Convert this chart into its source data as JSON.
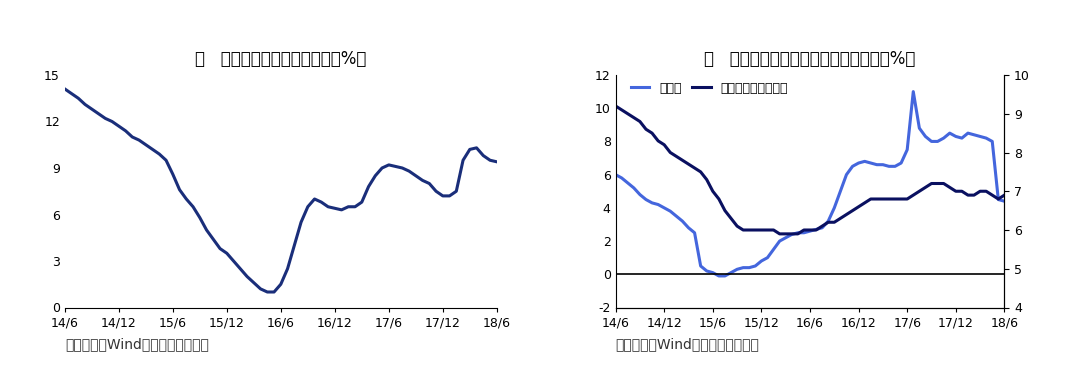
{
  "chart1_title": "图   房地产投资累计同比增速（%）",
  "chart2_title": "图   工业增加值与发电量累计同比增速（%）",
  "source_text": "资料来源：Wind，海通证券研究所",
  "legend_power": "发电量",
  "legend_industry": "工业增加值（右轴）",
  "xtick_labels": [
    "14/6",
    "14/12",
    "15/6",
    "15/12",
    "16/6",
    "16/12",
    "17/6",
    "17/12",
    "18/6"
  ],
  "chart1": {
    "ylim": [
      0,
      15
    ],
    "yticks": [
      0,
      3,
      6,
      9,
      12,
      15
    ],
    "y": [
      14.1,
      13.8,
      13.5,
      13.1,
      12.8,
      12.5,
      12.2,
      12.0,
      11.7,
      11.4,
      11.0,
      10.8,
      10.5,
      10.2,
      9.9,
      9.5,
      8.6,
      7.6,
      7.0,
      6.5,
      5.8,
      5.0,
      4.4,
      3.8,
      3.5,
      3.0,
      2.5,
      2.0,
      1.6,
      1.2,
      1.0,
      1.0,
      1.5,
      2.5,
      4.0,
      5.5,
      6.5,
      7.0,
      6.8,
      6.5,
      6.4,
      6.3,
      6.5,
      6.5,
      6.8,
      7.8,
      8.5,
      9.0,
      9.2,
      9.1,
      9.0,
      8.8,
      8.5,
      8.2,
      8.0,
      7.5,
      7.2,
      7.2,
      7.5,
      9.5,
      10.2,
      10.3,
      9.8,
      9.5,
      9.4
    ],
    "color": "#1a2e7a",
    "linewidth": 2.2
  },
  "chart2": {
    "ylim_left": [
      -2,
      12
    ],
    "ylim_right": [
      4,
      10
    ],
    "yticks_left": [
      -2,
      0,
      2,
      4,
      6,
      8,
      10,
      12
    ],
    "yticks_right": [
      4,
      5,
      6,
      7,
      8,
      9,
      10
    ],
    "y_power": [
      6.0,
      5.8,
      5.5,
      5.2,
      4.8,
      4.5,
      4.3,
      4.2,
      4.0,
      3.8,
      3.5,
      3.2,
      2.8,
      2.5,
      0.5,
      0.2,
      0.1,
      -0.1,
      -0.1,
      0.1,
      0.3,
      0.4,
      0.4,
      0.5,
      0.8,
      1.0,
      1.5,
      2.0,
      2.2,
      2.4,
      2.5,
      2.5,
      2.6,
      2.7,
      2.8,
      3.2,
      4.0,
      5.0,
      6.0,
      6.5,
      6.7,
      6.8,
      6.7,
      6.6,
      6.6,
      6.5,
      6.5,
      6.7,
      7.5,
      11.0,
      8.8,
      8.3,
      8.0,
      8.0,
      8.2,
      8.5,
      8.3,
      8.2,
      8.5,
      8.4,
      8.3,
      8.2,
      8.0,
      4.5,
      4.4
    ],
    "y_industry": [
      9.2,
      9.1,
      9.0,
      8.9,
      8.8,
      8.6,
      8.5,
      8.3,
      8.2,
      8.0,
      7.9,
      7.8,
      7.7,
      7.6,
      7.5,
      7.3,
      7.0,
      6.8,
      6.5,
      6.3,
      6.1,
      6.0,
      6.0,
      6.0,
      6.0,
      6.0,
      6.0,
      5.9,
      5.9,
      5.9,
      5.9,
      6.0,
      6.0,
      6.0,
      6.1,
      6.2,
      6.2,
      6.3,
      6.4,
      6.5,
      6.6,
      6.7,
      6.8,
      6.8,
      6.8,
      6.8,
      6.8,
      6.8,
      6.8,
      6.9,
      7.0,
      7.1,
      7.2,
      7.2,
      7.2,
      7.1,
      7.0,
      7.0,
      6.9,
      6.9,
      7.0,
      7.0,
      6.9,
      6.8,
      6.9
    ],
    "color_power": "#4466dd",
    "color_industry": "#0a1060",
    "linewidth": 2.2
  },
  "bg_color": "#ffffff",
  "title_fontsize": 12,
  "tick_fontsize": 9,
  "source_fontsize": 10,
  "legend_fontsize": 9
}
